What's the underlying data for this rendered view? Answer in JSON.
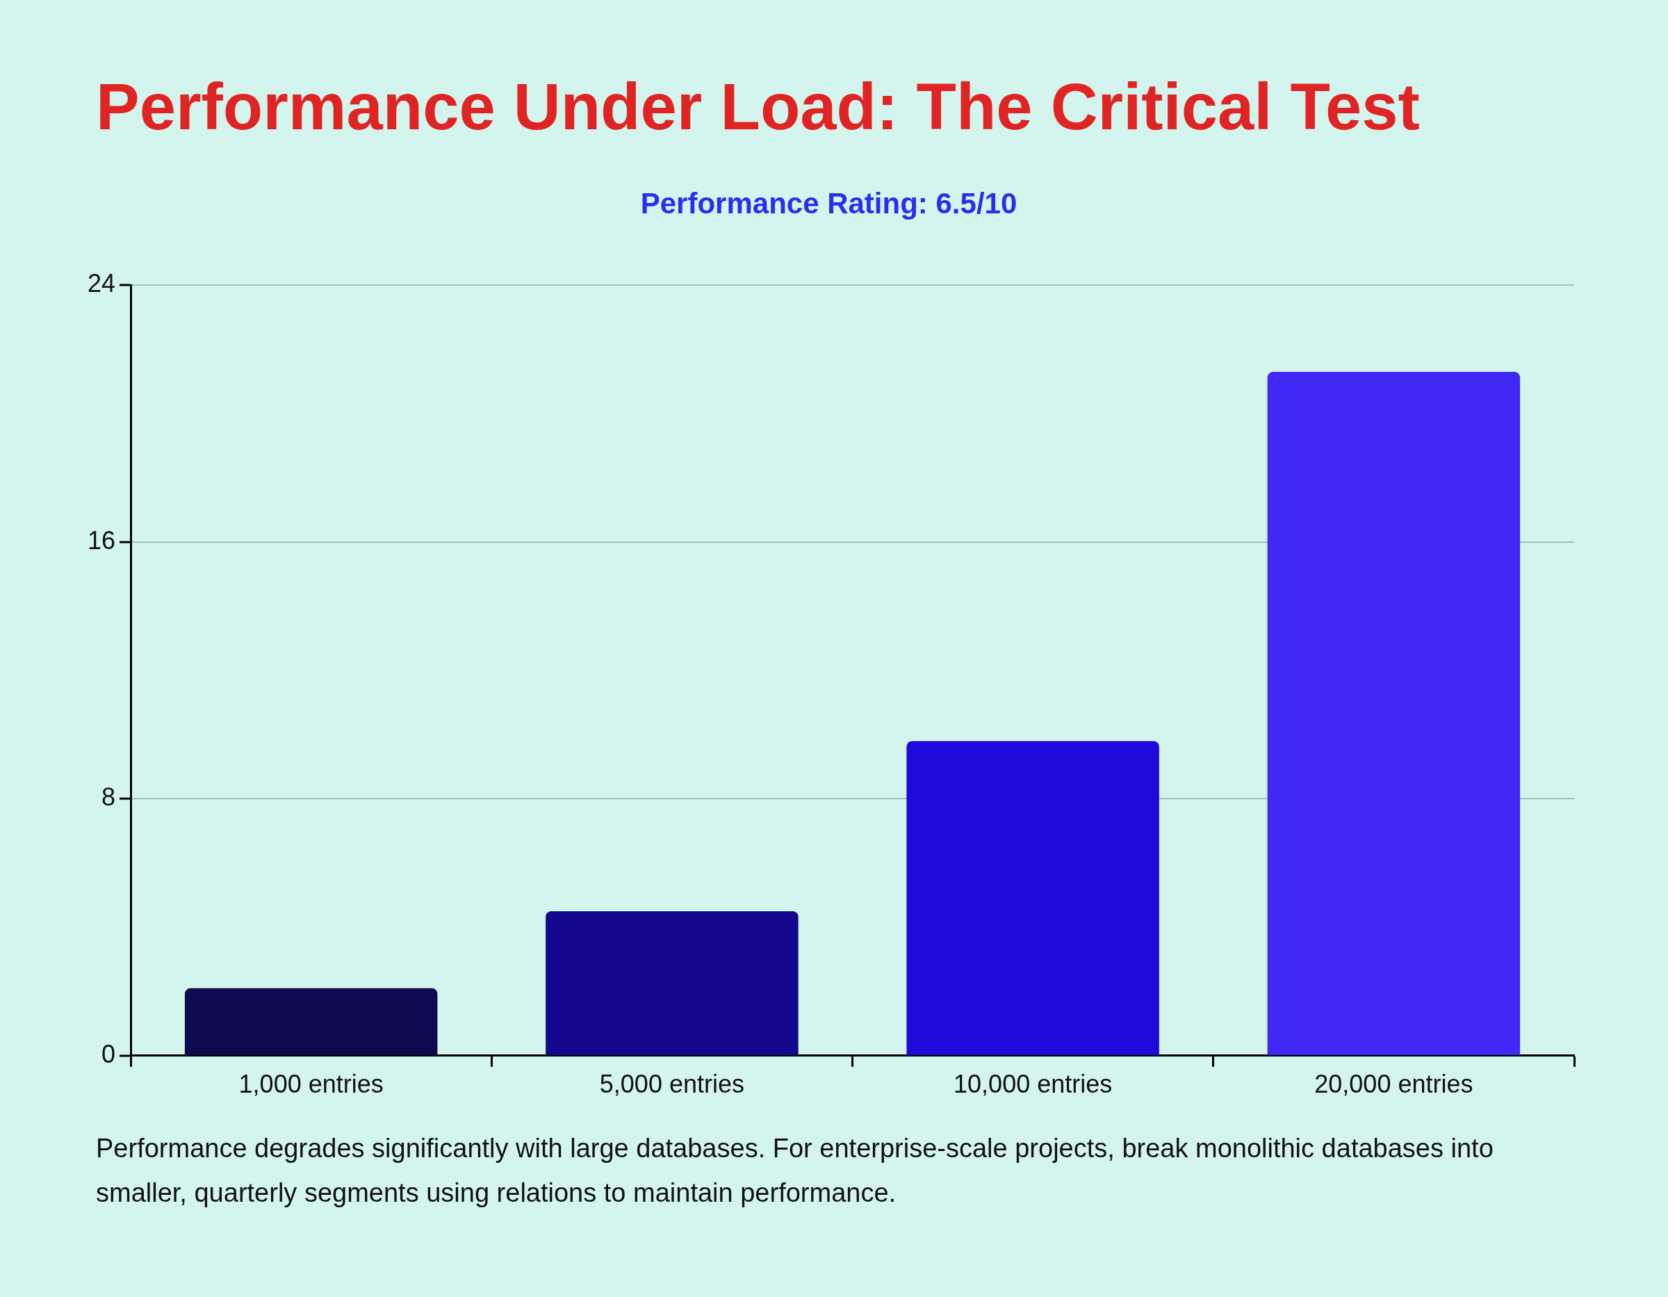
{
  "chart_data": {
    "type": "bar",
    "title": "Performance Under Load: The Critical Test",
    "subtitle": "Performance Rating: 6.5/10",
    "categories": [
      "1,000 entries",
      "5,000 entries",
      "10,000 entries",
      "20,000 entries"
    ],
    "values": [
      2.1,
      4.5,
      9.8,
      21.3
    ],
    "colors": [
      "#0d0a4f",
      "#14088f",
      "#1e0adb",
      "#4028f5"
    ],
    "ylim": [
      0,
      24
    ],
    "yticks": [
      0,
      8,
      16,
      24
    ],
    "grid": "y",
    "annotations": [
      "Performance degrades significantly with large databases. For enterprise-scale projects, break monolithic databases into smaller, quarterly segments using relations to maintain performance."
    ]
  }
}
